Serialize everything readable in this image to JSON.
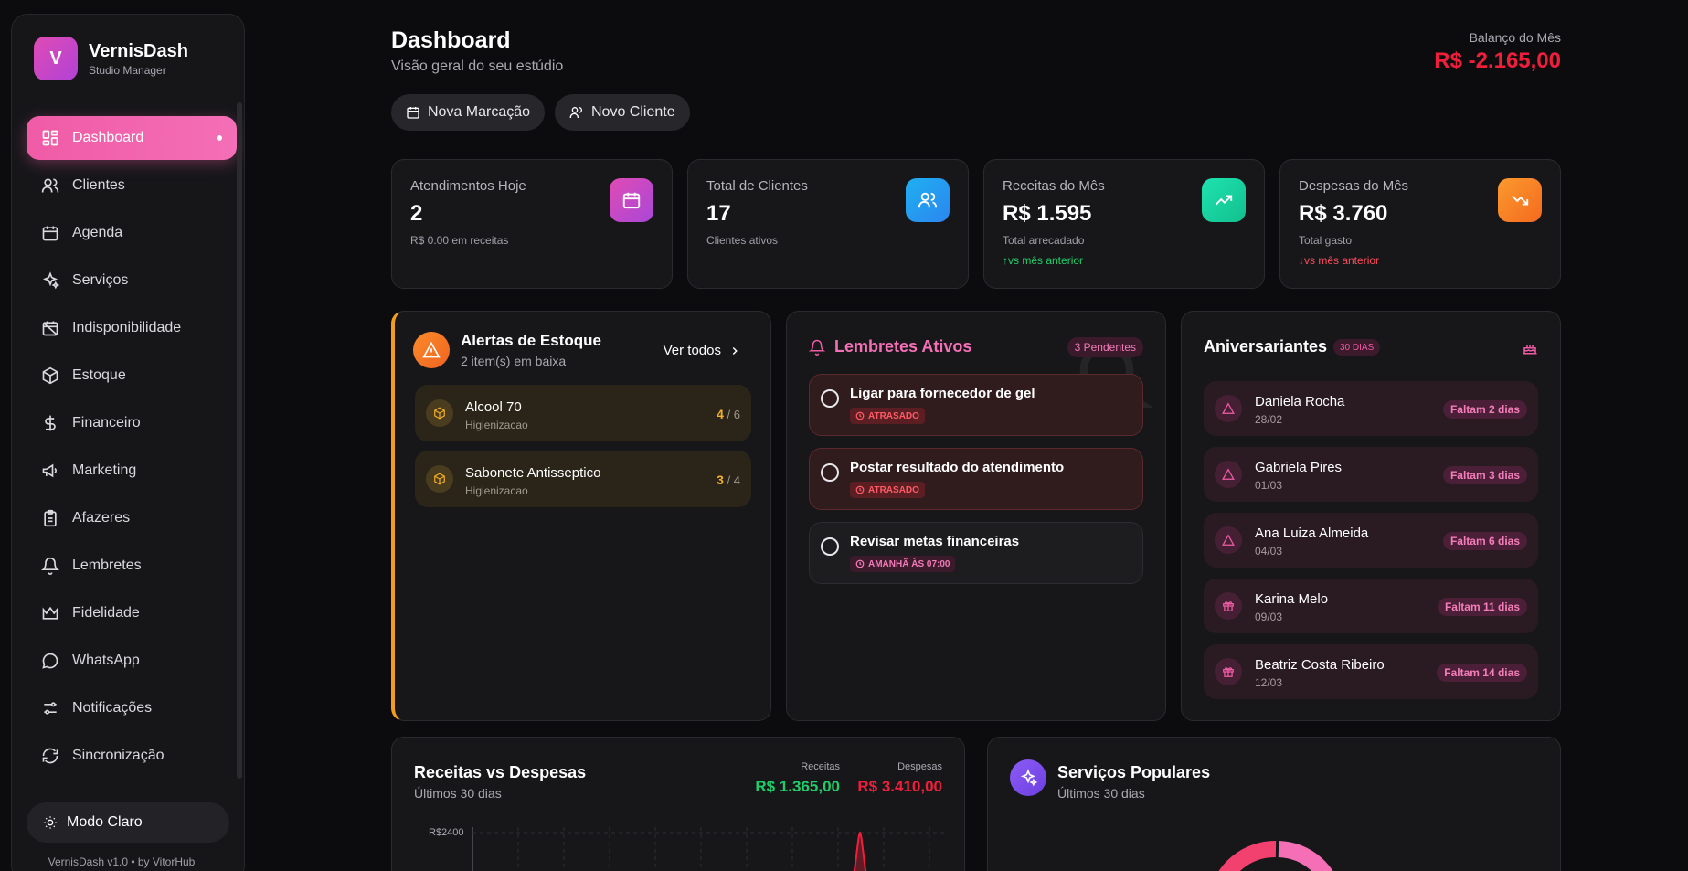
{
  "brand": {
    "logo_letter": "V",
    "name": "VernisDash",
    "subtitle": "Studio Manager"
  },
  "sidebar": {
    "items": [
      {
        "label": "Dashboard",
        "icon": "dashboard-icon",
        "active": true
      },
      {
        "label": "Clientes",
        "icon": "users-icon"
      },
      {
        "label": "Agenda",
        "icon": "calendar-icon"
      },
      {
        "label": "Serviços",
        "icon": "sparkles-icon"
      },
      {
        "label": "Indisponibilidade",
        "icon": "calendar-off-icon"
      },
      {
        "label": "Estoque",
        "icon": "package-icon"
      },
      {
        "label": "Financeiro",
        "icon": "dollar-icon"
      },
      {
        "label": "Marketing",
        "icon": "megaphone-icon"
      },
      {
        "label": "Afazeres",
        "icon": "clipboard-icon"
      },
      {
        "label": "Lembretes",
        "icon": "bell-icon"
      },
      {
        "label": "Fidelidade",
        "icon": "crown-icon"
      },
      {
        "label": "WhatsApp",
        "icon": "chat-icon"
      },
      {
        "label": "Notificações",
        "icon": "sliders-icon"
      },
      {
        "label": "Sincronização",
        "icon": "sync-icon"
      }
    ],
    "theme_toggle": "Modo Claro",
    "version": "VernisDash v1.0 • by VitorHub"
  },
  "header": {
    "title": "Dashboard",
    "subtitle": "Visão geral do seu estúdio",
    "new_booking": "Nova Marcação",
    "new_client": "Novo Cliente",
    "balance_label": "Balanço do Mês",
    "balance_value": "R$ -2.165,00"
  },
  "stats": [
    {
      "label": "Atendimentos Hoje",
      "value": "2",
      "note": "R$ 0.00 em receitas",
      "trend": ""
    },
    {
      "label": "Total de Clientes",
      "value": "17",
      "note": "Clientes ativos",
      "trend": ""
    },
    {
      "label": "Receitas do Mês",
      "value": "R$ 1.595",
      "note": "Total arrecadado",
      "trend": "↑vs mês anterior"
    },
    {
      "label": "Despesas do Mês",
      "value": "R$ 3.760",
      "note": "Total gasto",
      "trend": "↓vs mês anterior"
    }
  ],
  "stock_alerts": {
    "title": "Alertas de Estoque",
    "subtitle": "2 item(s) em baixa",
    "view_all": "Ver todos",
    "items": [
      {
        "name": "Alcool 70",
        "category": "Higienizacao",
        "qty": "4",
        "min": "/ 6"
      },
      {
        "name": "Sabonete Antisseptico",
        "category": "Higienizacao",
        "qty": "3",
        "min": "/ 4"
      }
    ]
  },
  "reminders": {
    "title": "Lembretes Ativos",
    "pending": "3 Pendentes",
    "items": [
      {
        "title": "Ligar para fornecedor de gel",
        "badge": "ATRASADO"
      },
      {
        "title": "Postar resultado do atendimento",
        "badge": "ATRASADO"
      },
      {
        "title": "Revisar metas financeiras",
        "badge": "AMANHÃ ÀS 07:00"
      }
    ]
  },
  "birthdays": {
    "title": "Aniversariantes",
    "badge": "30 DIAS",
    "items": [
      {
        "name": "Daniela Rocha",
        "date": "28/02",
        "badge": "Faltam 2 dias",
        "icon": "alert-triangle-icon"
      },
      {
        "name": "Gabriela Pires",
        "date": "01/03",
        "badge": "Faltam 3 dias",
        "icon": "alert-triangle-icon"
      },
      {
        "name": "Ana Luiza Almeida",
        "date": "04/03",
        "badge": "Faltam 6 dias",
        "icon": "alert-triangle-icon"
      },
      {
        "name": "Karina Melo",
        "date": "09/03",
        "badge": "Faltam 11 dias",
        "icon": "gift-icon"
      },
      {
        "name": "Beatriz Costa Ribeiro",
        "date": "12/03",
        "badge": "Faltam 14 dias",
        "icon": "gift-icon"
      }
    ]
  },
  "revenue_chart": {
    "title": "Receitas vs Despesas",
    "subtitle": "Últimos 30 dias",
    "income_label": "Receitas",
    "income_value": "R$ 1.365,00",
    "expense_label": "Despesas",
    "expense_value": "R$ 3.410,00",
    "y_tick_top": "R$2400"
  },
  "popular_services": {
    "title": "Serviços Populares",
    "subtitle": "Últimos 30 dias"
  },
  "colors": {
    "accent": "#f05ba6",
    "income": "#1fce6a",
    "expense": "#ef1f3b",
    "warning": "#f39d1f"
  }
}
